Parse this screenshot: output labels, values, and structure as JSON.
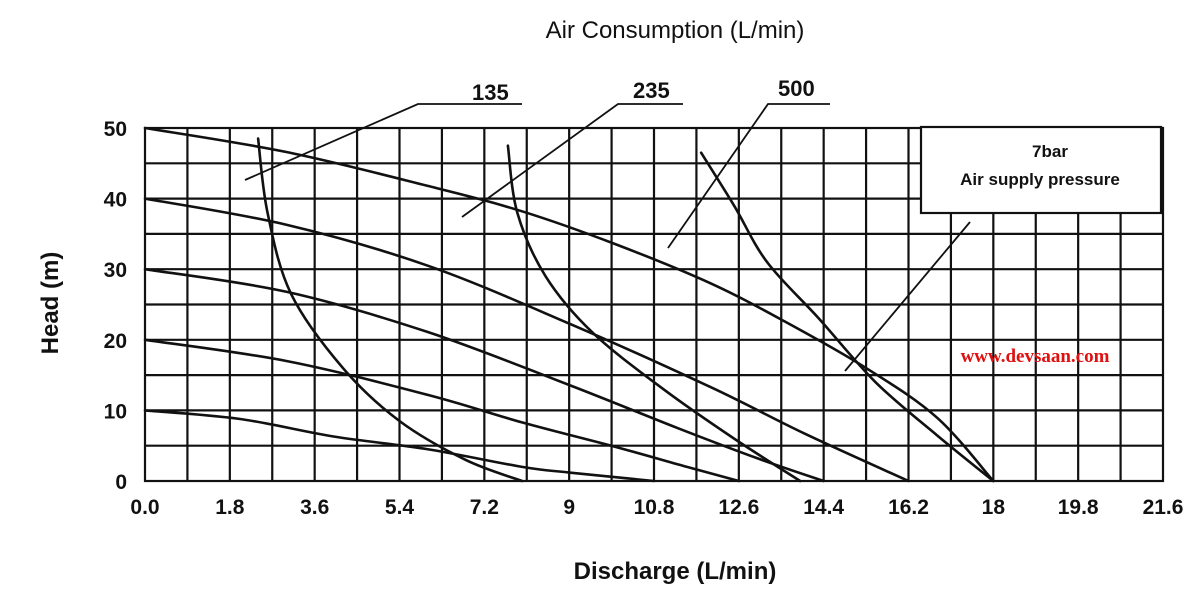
{
  "chart_data": {
    "type": "line",
    "title": "Air Consumption (L/min)",
    "xlabel": "Discharge (L/min)",
    "ylabel": "Head (m)",
    "xlim": [
      0,
      21.6
    ],
    "ylim": [
      0,
      50
    ],
    "x_ticks": [
      "0.0",
      "1.8",
      "3.6",
      "5.4",
      "7.2",
      "9",
      "10.8",
      "12.6",
      "14.4",
      "16.2",
      "18",
      "19.8",
      "21.6"
    ],
    "y_ticks": [
      "0",
      "10",
      "20",
      "30",
      "40",
      "50"
    ],
    "grid": true,
    "note": [
      "7bar",
      "Air supply pressure"
    ],
    "watermark": "www.devsaan.com",
    "air_consumption_labels": [
      "135",
      "235",
      "500"
    ],
    "series": [
      {
        "x": [
          0,
          3,
          6,
          8,
          10,
          12,
          13.6,
          15.3,
          16.8,
          18
        ],
        "y": [
          50,
          46.6,
          41.8,
          38.2,
          33.5,
          28,
          22.5,
          16,
          9,
          0
        ]
      },
      {
        "x": [
          0,
          3,
          6,
          9,
          12,
          14,
          16.2
        ],
        "y": [
          40,
          36.3,
          30.5,
          22.3,
          13.3,
          6.7,
          0
        ]
      },
      {
        "x": [
          0,
          3,
          6,
          9,
          11.3,
          13,
          14.4
        ],
        "y": [
          30,
          26.8,
          21.1,
          13.6,
          7.5,
          3.2,
          0
        ]
      },
      {
        "x": [
          0,
          3,
          6,
          8,
          10,
          11.5,
          12.6
        ],
        "y": [
          20,
          17,
          12.2,
          8.3,
          4.8,
          2,
          0
        ]
      },
      {
        "x": [
          0,
          2,
          4,
          6,
          8,
          9,
          10.8
        ],
        "y": [
          10,
          8.8,
          6.3,
          4.5,
          2,
          1.2,
          0
        ]
      },
      {
        "x": [
          2.4,
          2.6,
          3.1,
          4.2,
          5.4,
          6.8,
          8
        ],
        "y": [
          48.5,
          38,
          26.5,
          16,
          8.5,
          3,
          0
        ]
      },
      {
        "x": [
          7.7,
          7.9,
          8.5,
          9.5,
          11,
          12.5,
          13.9
        ],
        "y": [
          47.5,
          38,
          29,
          21,
          13,
          6,
          0
        ]
      },
      {
        "x": [
          11.8,
          12.5,
          13.2,
          14.3,
          15.5,
          16.8,
          18
        ],
        "y": [
          46.5,
          39,
          31,
          23,
          14,
          6.5,
          0
        ]
      }
    ]
  }
}
